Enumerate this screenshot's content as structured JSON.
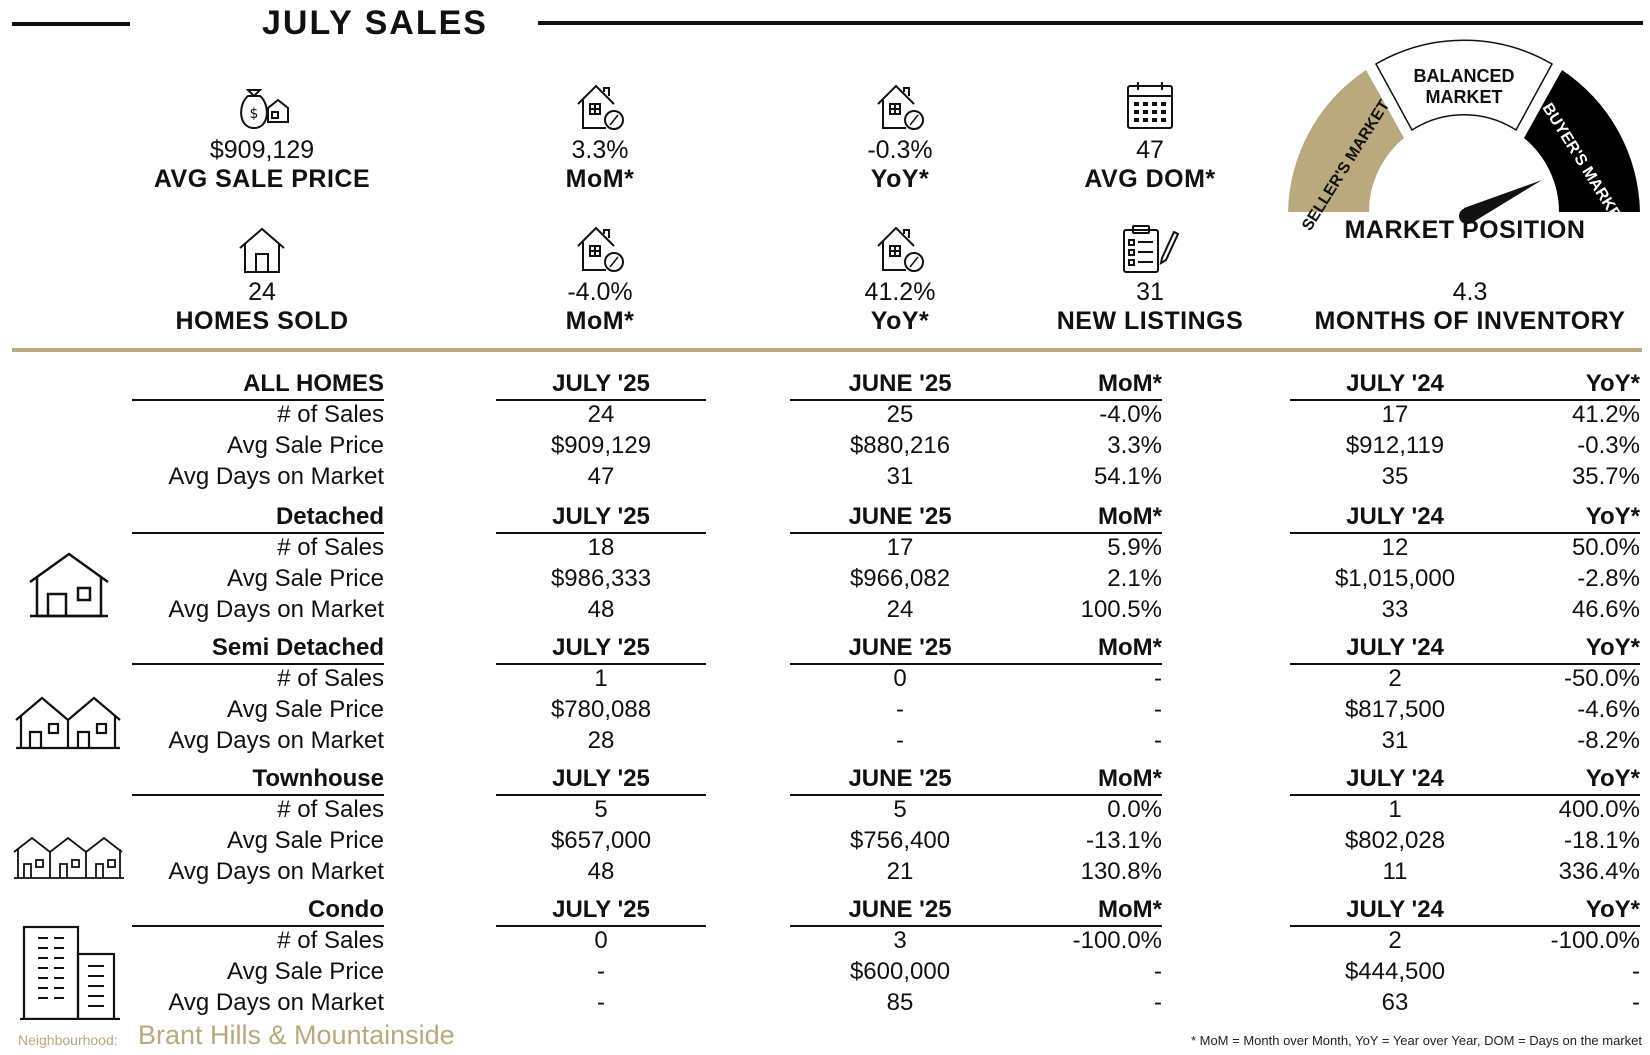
{
  "header": {
    "title": "JULY SALES"
  },
  "stats_top": [
    {
      "icon": "money-bag-house-icon",
      "value": "$909,129",
      "label": "AVG SALE PRICE"
    },
    {
      "icon": "house-percent-icon",
      "value": "3.3%",
      "label": "MoM*"
    },
    {
      "icon": "house-percent-icon",
      "value": "-0.3%",
      "label": "YoY*"
    },
    {
      "icon": "calendar-icon",
      "value": "47",
      "label": "AVG DOM*"
    }
  ],
  "stats_bottom": [
    {
      "icon": "house-icon",
      "value": "24",
      "label": "HOMES SOLD"
    },
    {
      "icon": "house-percent-icon",
      "value": "-4.0%",
      "label": "MoM*"
    },
    {
      "icon": "house-percent-icon",
      "value": "41.2%",
      "label": "YoY*"
    },
    {
      "icon": "clipboard-pen-icon",
      "value": "31",
      "label": "NEW LISTINGS"
    },
    {
      "icon": "",
      "value": "4.3",
      "label": "MONTHS OF INVENTORY"
    }
  ],
  "gauge": {
    "seller": "SELLER'S MARKET",
    "balanced_line1": "BALANCED",
    "balanced_line2": "MARKET",
    "buyer": "BUYER'S MARKET",
    "label": "MARKET POSITION",
    "colors": {
      "seller": "#bba97e",
      "balanced": "#ffffff",
      "buyer": "#000000"
    }
  },
  "columns": {
    "july25": "JULY '25",
    "june25": "JUNE '25",
    "mom": "MoM*",
    "july24": "JULY '24",
    "yoy": "YoY*"
  },
  "row_labels": {
    "sales": "# of Sales",
    "price": "Avg Sale Price",
    "dom": "Avg Days on Market"
  },
  "sections": [
    {
      "title": "ALL HOMES",
      "icon": "",
      "rows": [
        {
          "july25": "24",
          "june25": "25",
          "mom": "-4.0%",
          "july24": "17",
          "yoy": "41.2%"
        },
        {
          "july25": "$909,129",
          "june25": "$880,216",
          "mom": "3.3%",
          "july24": "$912,119",
          "yoy": "-0.3%"
        },
        {
          "july25": "47",
          "june25": "31",
          "mom": "54.1%",
          "july24": "35",
          "yoy": "35.7%"
        }
      ]
    },
    {
      "title": "Detached",
      "icon": "detached-house-icon",
      "rows": [
        {
          "july25": "18",
          "june25": "17",
          "mom": "5.9%",
          "july24": "12",
          "yoy": "50.0%"
        },
        {
          "july25": "$986,333",
          "june25": "$966,082",
          "mom": "2.1%",
          "july24": "$1,015,000",
          "yoy": "-2.8%"
        },
        {
          "july25": "48",
          "june25": "24",
          "mom": "100.5%",
          "july24": "33",
          "yoy": "46.6%"
        }
      ]
    },
    {
      "title": "Semi Detached",
      "icon": "semi-detached-icon",
      "rows": [
        {
          "july25": "1",
          "june25": "0",
          "mom": "-",
          "july24": "2",
          "yoy": "-50.0%"
        },
        {
          "july25": "$780,088",
          "june25": "-",
          "mom": "-",
          "july24": "$817,500",
          "yoy": "-4.6%"
        },
        {
          "july25": "28",
          "june25": "-",
          "mom": "-",
          "july24": "31",
          "yoy": "-8.2%"
        }
      ]
    },
    {
      "title": "Townhouse",
      "icon": "townhouse-icon",
      "rows": [
        {
          "july25": "5",
          "june25": "5",
          "mom": "0.0%",
          "july24": "1",
          "yoy": "400.0%"
        },
        {
          "july25": "$657,000",
          "june25": "$756,400",
          "mom": "-13.1%",
          "july24": "$802,028",
          "yoy": "-18.1%"
        },
        {
          "july25": "48",
          "june25": "21",
          "mom": "130.8%",
          "july24": "11",
          "yoy": "336.4%"
        }
      ]
    },
    {
      "title": "Condo",
      "icon": "condo-building-icon",
      "rows": [
        {
          "july25": "0",
          "june25": "3",
          "mom": "-100.0%",
          "july24": "2",
          "yoy": "-100.0%"
        },
        {
          "july25": "-",
          "june25": "$600,000",
          "mom": "-",
          "july24": "$444,500",
          "yoy": "-"
        },
        {
          "july25": "-",
          "june25": "85",
          "mom": "-",
          "july24": "63",
          "yoy": "-"
        }
      ]
    }
  ],
  "footer": {
    "neighbourhood_label": "Neighbourhood:",
    "neighbourhood_name": "Brant Hills & Mountainside",
    "note": "* MoM = Month over Month, YoY = Year over Year, DOM = Days on the market"
  }
}
